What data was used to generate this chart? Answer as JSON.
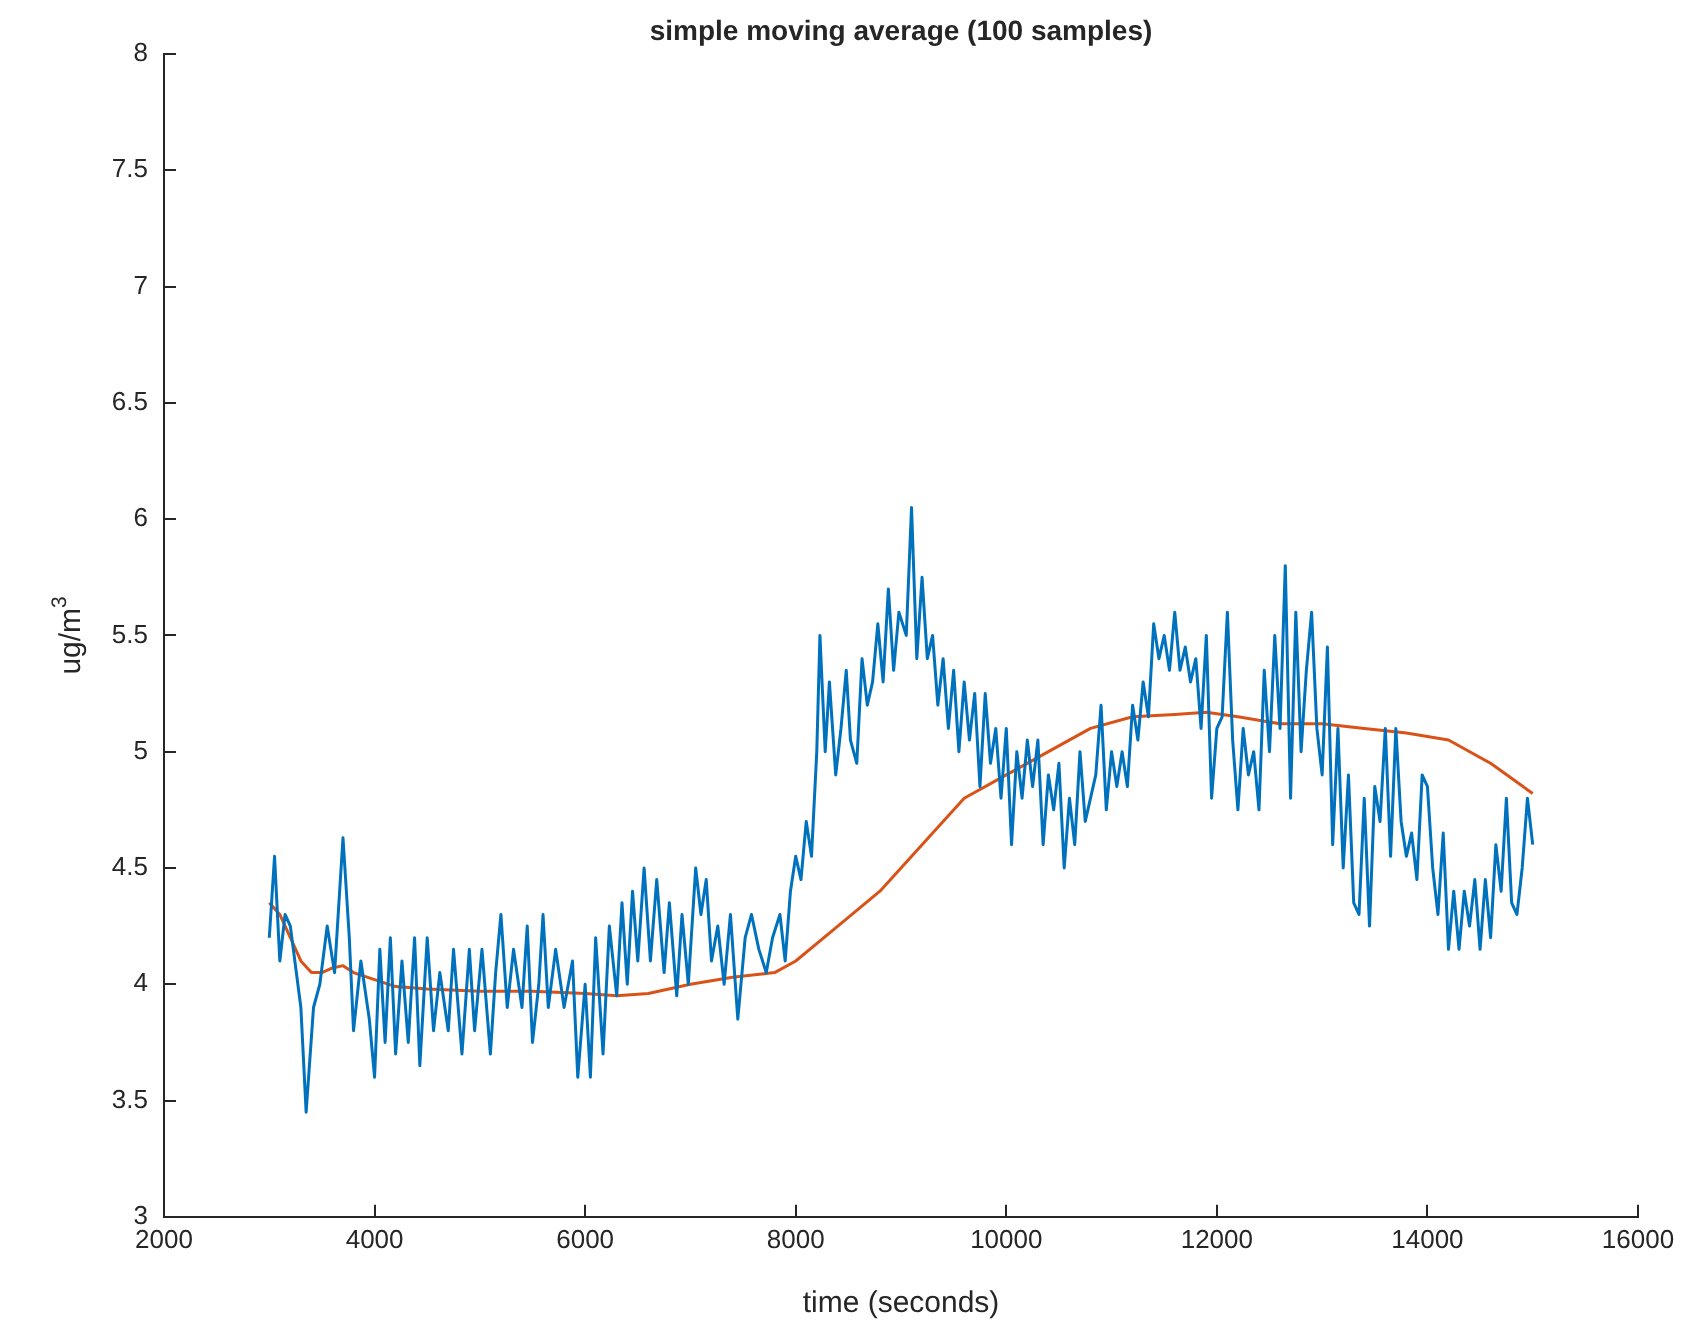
{
  "chart_data": {
    "type": "line",
    "title": "simple moving average (100 samples)",
    "xlabel": "time (seconds)",
    "ylabel": "ug/m$^{3}$",
    "xlim": [
      2000,
      16000
    ],
    "xticks": [
      2000,
      4000,
      6000,
      8000,
      10000,
      12000,
      14000,
      16000
    ],
    "ylim": [
      3,
      8
    ],
    "yticks": [
      3,
      3.5,
      4,
      4.5,
      5,
      5.5,
      6,
      6.5,
      7,
      7.5,
      8
    ],
    "grid": false,
    "legend": false,
    "marker": "none",
    "line_style": "solid",
    "series": [
      {
        "color": "#0072bd",
        "x": [
          3000,
          3050,
          3100,
          3150,
          3200,
          3300,
          3350,
          3420,
          3480,
          3550,
          3620,
          3700,
          3760,
          3800,
          3870,
          3950,
          4000,
          4050,
          4100,
          4150,
          4200,
          4260,
          4320,
          4380,
          4430,
          4500,
          4560,
          4620,
          4700,
          4750,
          4830,
          4900,
          4950,
          5020,
          5100,
          5150,
          5200,
          5260,
          5320,
          5400,
          5450,
          5500,
          5560,
          5600,
          5650,
          5720,
          5800,
          5880,
          5930,
          6000,
          6050,
          6100,
          6170,
          6230,
          6300,
          6350,
          6400,
          6450,
          6500,
          6560,
          6620,
          6680,
          6750,
          6800,
          6870,
          6920,
          6980,
          7050,
          7100,
          7150,
          7200,
          7260,
          7320,
          7380,
          7450,
          7520,
          7580,
          7650,
          7720,
          7780,
          7850,
          7900,
          7950,
          8000,
          8050,
          8100,
          8150,
          8200,
          8230,
          8280,
          8320,
          8380,
          8430,
          8480,
          8520,
          8580,
          8630,
          8680,
          8730,
          8780,
          8830,
          8880,
          8930,
          8980,
          9050,
          9100,
          9150,
          9200,
          9250,
          9300,
          9350,
          9400,
          9450,
          9500,
          9550,
          9600,
          9650,
          9700,
          9750,
          9800,
          9850,
          9900,
          9950,
          10000,
          10050,
          10100,
          10150,
          10200,
          10250,
          10300,
          10350,
          10400,
          10450,
          10500,
          10550,
          10600,
          10650,
          10700,
          10750,
          10800,
          10850,
          10900,
          10950,
          11000,
          11050,
          11100,
          11150,
          11200,
          11250,
          11300,
          11350,
          11400,
          11450,
          11500,
          11550,
          11600,
          11650,
          11700,
          11750,
          11800,
          11850,
          11900,
          11950,
          12000,
          12050,
          12100,
          12150,
          12200,
          12250,
          12300,
          12350,
          12400,
          12450,
          12500,
          12550,
          12600,
          12650,
          12700,
          12750,
          12800,
          12850,
          12900,
          12950,
          13000,
          13050,
          13100,
          13150,
          13200,
          13250,
          13300,
          13350,
          13400,
          13450,
          13500,
          13550,
          13600,
          13650,
          13700,
          13750,
          13800,
          13850,
          13900,
          13950,
          14000,
          14050,
          14100,
          14150,
          14200,
          14250,
          14300,
          14350,
          14400,
          14450,
          14500,
          14550,
          14600,
          14650,
          14700,
          14750,
          14800,
          14850,
          14900,
          14950,
          15000
        ],
        "values": [
          4.2,
          4.55,
          4.1,
          4.3,
          4.25,
          3.9,
          3.45,
          3.9,
          4.0,
          4.25,
          4.05,
          4.63,
          4.2,
          3.8,
          4.1,
          3.85,
          3.6,
          4.15,
          3.75,
          4.2,
          3.7,
          4.1,
          3.75,
          4.2,
          3.65,
          4.2,
          3.8,
          4.05,
          3.8,
          4.15,
          3.7,
          4.15,
          3.8,
          4.15,
          3.7,
          4.05,
          4.3,
          3.9,
          4.15,
          3.9,
          4.25,
          3.75,
          4.0,
          4.3,
          3.9,
          4.15,
          3.9,
          4.1,
          3.6,
          4.0,
          3.6,
          4.2,
          3.7,
          4.25,
          3.95,
          4.35,
          4.0,
          4.4,
          4.1,
          4.5,
          4.1,
          4.45,
          4.05,
          4.35,
          3.95,
          4.3,
          4.0,
          4.5,
          4.3,
          4.45,
          4.1,
          4.25,
          4.0,
          4.3,
          3.85,
          4.2,
          4.3,
          4.15,
          4.05,
          4.2,
          4.3,
          4.1,
          4.4,
          4.55,
          4.45,
          4.7,
          4.55,
          5.0,
          5.5,
          5.0,
          5.3,
          4.9,
          5.1,
          5.35,
          5.05,
          4.95,
          5.4,
          5.2,
          5.3,
          5.55,
          5.3,
          5.7,
          5.35,
          5.6,
          5.5,
          6.05,
          5.4,
          5.75,
          5.4,
          5.5,
          5.2,
          5.4,
          5.1,
          5.35,
          5.0,
          5.3,
          5.05,
          5.25,
          4.85,
          5.25,
          4.95,
          5.1,
          4.8,
          5.1,
          4.6,
          5.0,
          4.8,
          5.05,
          4.85,
          5.05,
          4.6,
          4.9,
          4.75,
          4.95,
          4.5,
          4.8,
          4.6,
          5.0,
          4.7,
          4.8,
          4.9,
          5.2,
          4.75,
          5.0,
          4.85,
          5.0,
          4.85,
          5.2,
          5.05,
          5.3,
          5.15,
          5.55,
          5.4,
          5.5,
          5.35,
          5.6,
          5.35,
          5.45,
          5.3,
          5.4,
          5.1,
          5.5,
          4.8,
          5.1,
          5.15,
          5.6,
          5.05,
          4.75,
          5.1,
          4.9,
          5.0,
          4.75,
          5.35,
          5.0,
          5.5,
          5.1,
          5.8,
          4.8,
          5.6,
          5.0,
          5.35,
          5.6,
          5.1,
          4.9,
          5.45,
          4.6,
          5.1,
          4.5,
          4.9,
          4.35,
          4.3,
          4.8,
          4.25,
          4.85,
          4.7,
          5.1,
          4.55,
          5.1,
          4.7,
          4.55,
          4.65,
          4.45,
          4.9,
          4.85,
          4.5,
          4.3,
          4.65,
          4.15,
          4.4,
          4.15,
          4.4,
          4.25,
          4.45,
          4.15,
          4.45,
          4.2,
          4.6,
          4.4,
          4.8,
          4.35,
          4.3,
          4.5,
          4.8,
          4.6
        ]
      },
      {
        "color": "#d95319",
        "x": [
          3000,
          3100,
          3200,
          3300,
          3400,
          3500,
          3600,
          3700,
          3800,
          4000,
          4200,
          4500,
          5000,
          5500,
          6000,
          6300,
          6600,
          7000,
          7400,
          7800,
          8000,
          8400,
          8800,
          9200,
          9600,
          10000,
          10400,
          10800,
          11200,
          11600,
          11900,
          12200,
          12600,
          13000,
          13400,
          13800,
          14200,
          14600,
          15000
        ],
        "values": [
          4.35,
          4.3,
          4.2,
          4.1,
          4.05,
          4.05,
          4.07,
          4.08,
          4.05,
          4.02,
          3.99,
          3.98,
          3.97,
          3.97,
          3.96,
          3.95,
          3.96,
          4.0,
          4.03,
          4.05,
          4.1,
          4.25,
          4.4,
          4.6,
          4.8,
          4.9,
          5.0,
          5.1,
          5.15,
          5.16,
          5.17,
          5.15,
          5.12,
          5.12,
          5.1,
          5.08,
          5.05,
          4.95,
          4.82
        ]
      }
    ]
  }
}
